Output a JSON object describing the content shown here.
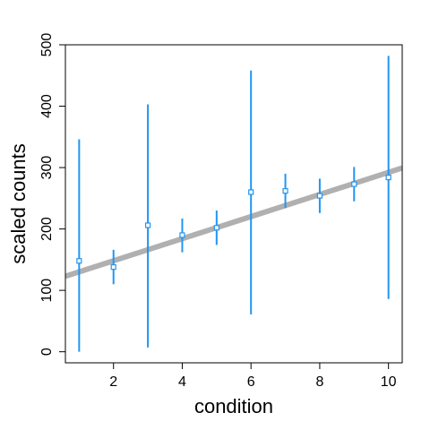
{
  "chart_data": {
    "type": "scatter",
    "xlabel": "condition",
    "ylabel": "scaled counts",
    "xlim": [
      0.6,
      10.4
    ],
    "ylim": [
      -18,
      500
    ],
    "x_ticks": [
      2,
      4,
      6,
      8,
      10
    ],
    "y_ticks": [
      0,
      100,
      200,
      300,
      400,
      500
    ],
    "grid": false,
    "points": [
      {
        "x": 1,
        "y": 148,
        "lower": 0,
        "upper": 346
      },
      {
        "x": 2,
        "y": 138,
        "lower": 110,
        "upper": 166
      },
      {
        "x": 3,
        "y": 206,
        "lower": 7,
        "upper": 403
      },
      {
        "x": 4,
        "y": 190,
        "lower": 162,
        "upper": 217
      },
      {
        "x": 5,
        "y": 202,
        "lower": 174,
        "upper": 230
      },
      {
        "x": 6,
        "y": 260,
        "lower": 61,
        "upper": 458
      },
      {
        "x": 7,
        "y": 262,
        "lower": 234,
        "upper": 290
      },
      {
        "x": 8,
        "y": 254,
        "lower": 226,
        "upper": 282
      },
      {
        "x": 9,
        "y": 273,
        "lower": 245,
        "upper": 301
      },
      {
        "x": 10,
        "y": 284,
        "lower": 86,
        "upper": 482
      }
    ],
    "trend_line": {
      "intercept": 112.2,
      "slope": 18.0
    },
    "colors": {
      "points": "#2196F3",
      "trend_line": "#B0B0B0",
      "axis": "#000000"
    }
  }
}
